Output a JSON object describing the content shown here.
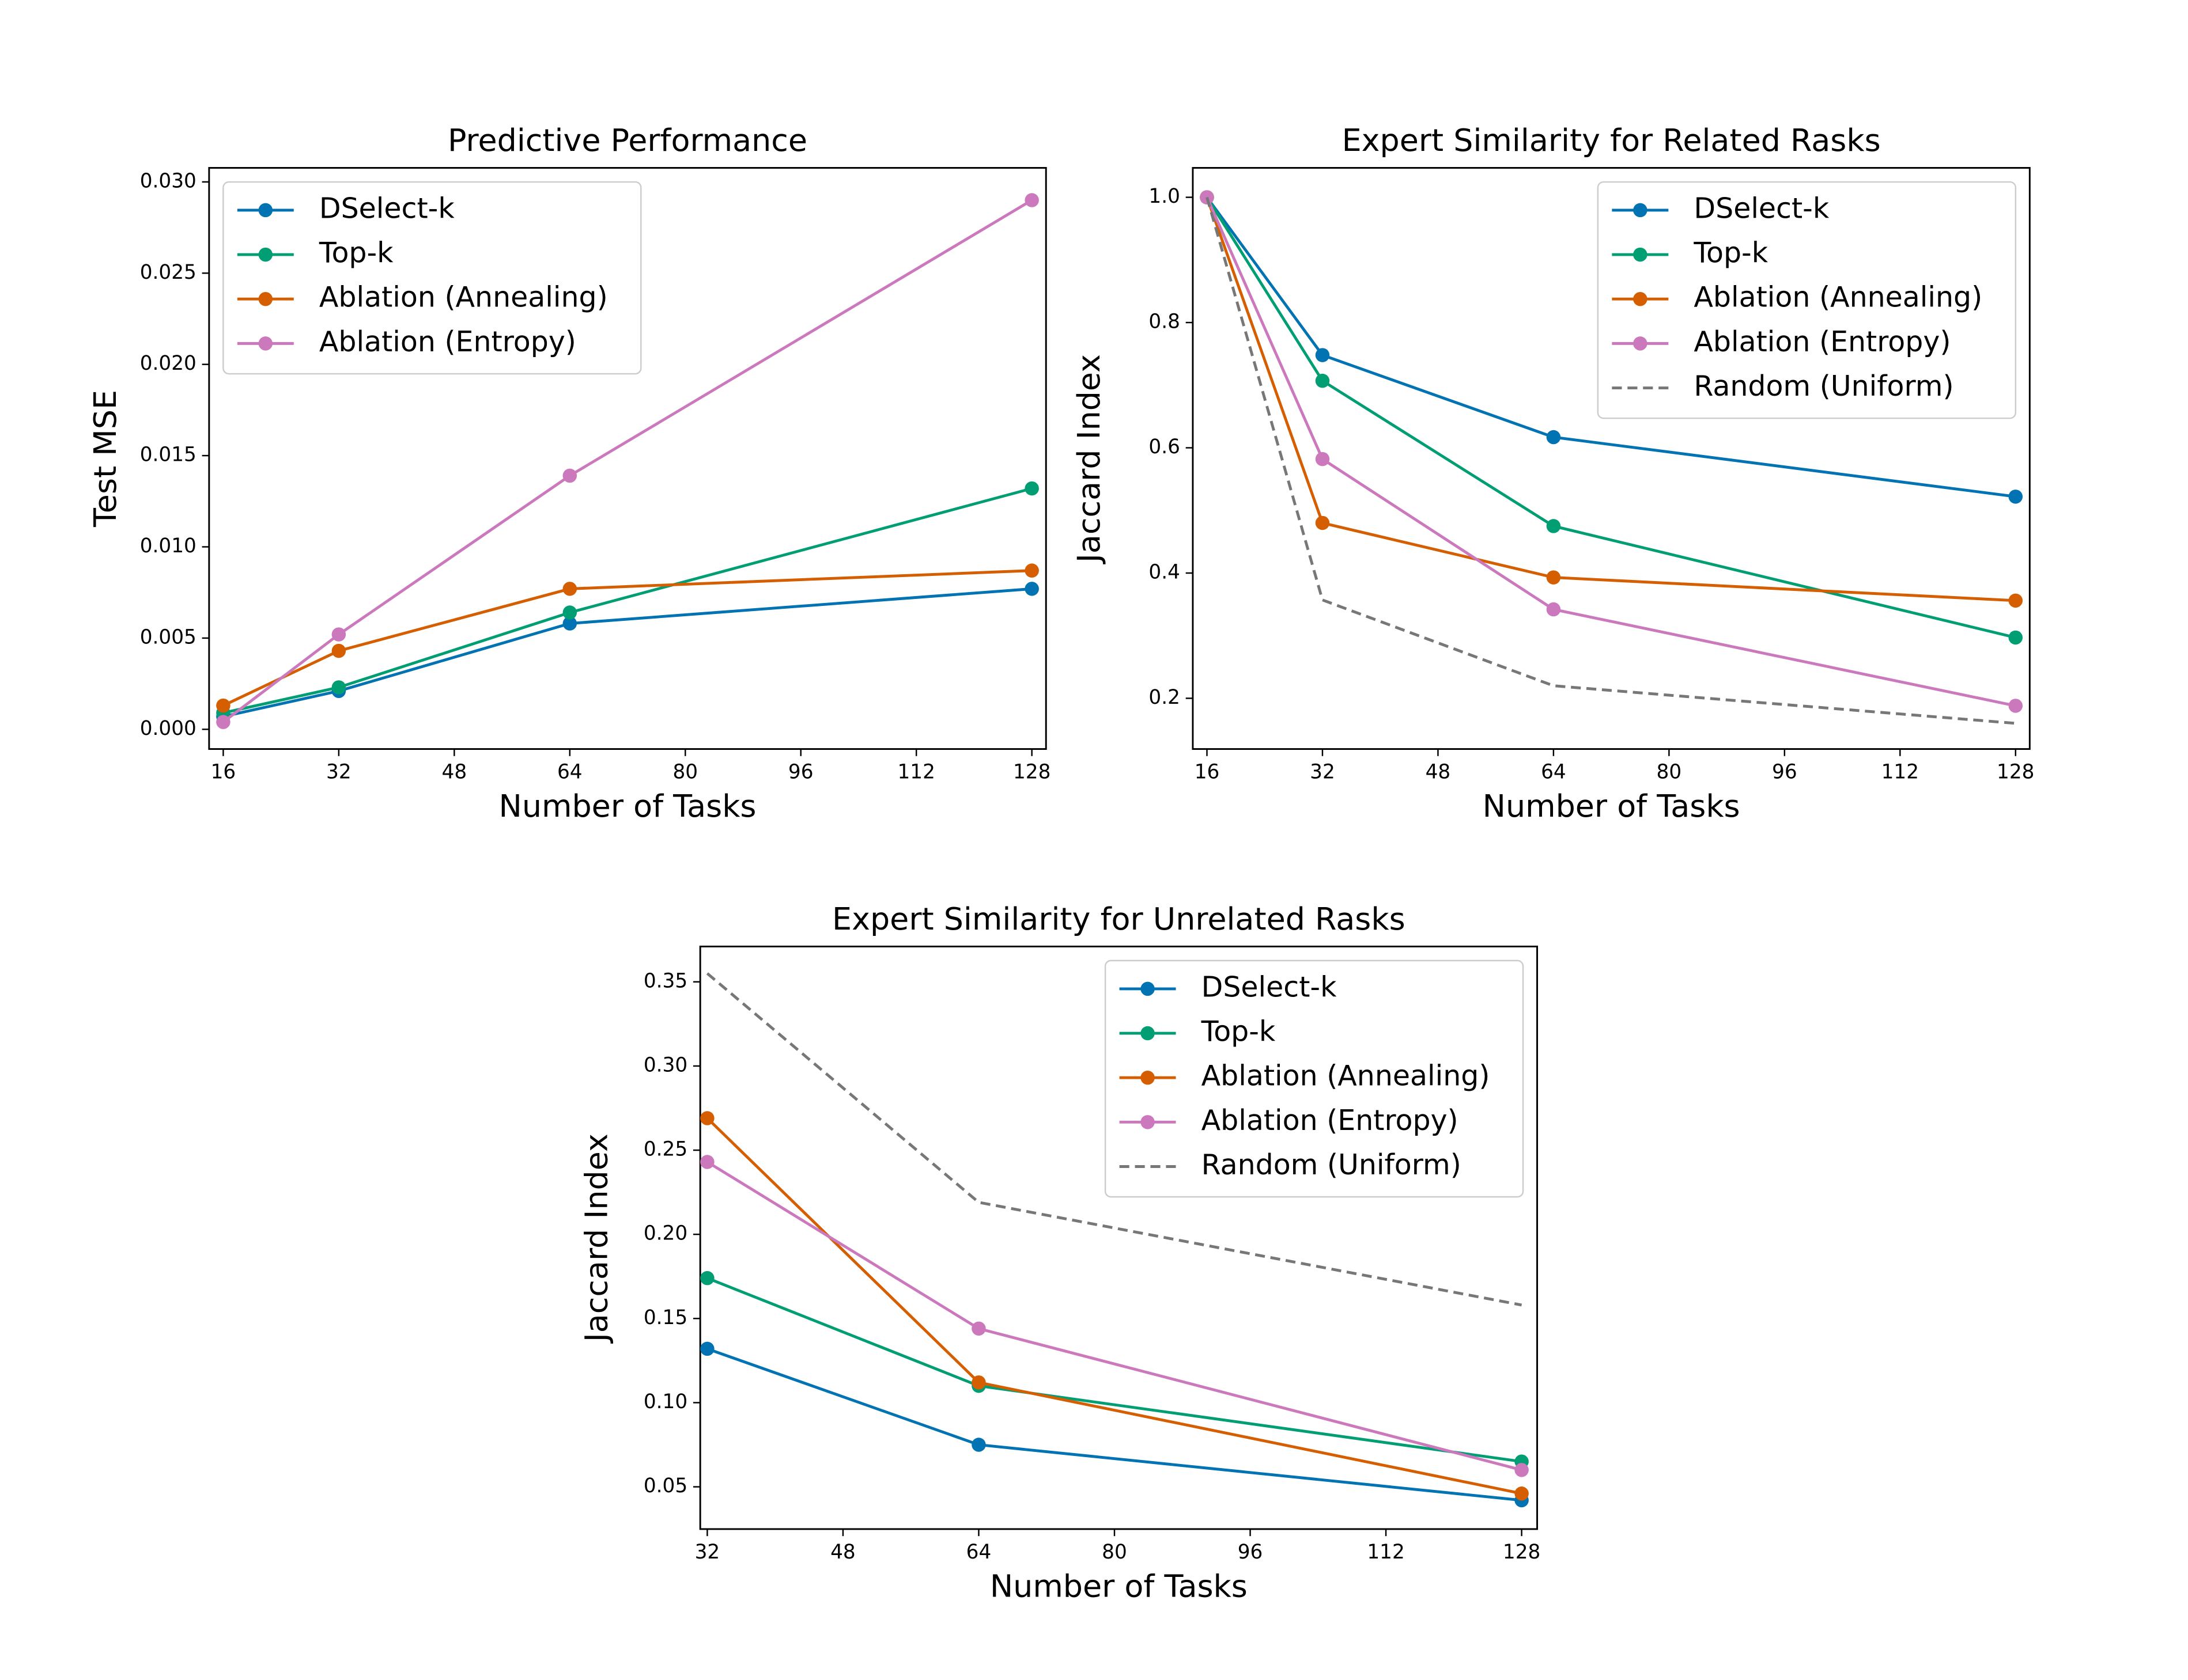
{
  "chart_data": [
    {
      "type": "line",
      "title": "Predictive Performance",
      "xlabel": "Number of Tasks",
      "ylabel": "Test MSE",
      "x": [
        16,
        32,
        64,
        128
      ],
      "xlim": [
        14.04,
        129.96
      ],
      "xticks": [
        16,
        32,
        48,
        64,
        80,
        96,
        112,
        128
      ],
      "ylim": [
        -0.00108,
        0.03077
      ],
      "yticks": [
        {
          "value": 0,
          "label": "0.000"
        },
        {
          "value": 0.005,
          "label": "0.005"
        },
        {
          "value": 0.01,
          "label": "0.010"
        },
        {
          "value": 0.015,
          "label": "0.015"
        },
        {
          "value": 0.02,
          "label": "0.020"
        },
        {
          "value": 0.025,
          "label": "0.025"
        },
        {
          "value": 0.03,
          "label": "0.030"
        }
      ],
      "legend": "upper-left",
      "series": [
        {
          "name": "DSelect-k",
          "color": "#0173b2",
          "values": [
            0.0007,
            0.0021,
            0.0058,
            0.0077
          ]
        },
        {
          "name": "Top-k",
          "color": "#029e73",
          "values": [
            0.0009,
            0.0023,
            0.0064,
            0.0132
          ]
        },
        {
          "name": "Ablation (Annealing)",
          "color": "#d55e00",
          "values": [
            0.0013,
            0.0043,
            0.0077,
            0.0087
          ]
        },
        {
          "name": "Ablation (Entropy)",
          "color": "#cc78bc",
          "values": [
            0.0004,
            0.0052,
            0.0139,
            0.029
          ]
        }
      ]
    },
    {
      "type": "line",
      "title": "Expert Similarity for Related Rasks",
      "xlabel": "Number of Tasks",
      "ylabel": "Jaccard Index",
      "x": [
        16,
        32,
        64,
        128
      ],
      "xlim": [
        14.04,
        129.96
      ],
      "xticks": [
        16,
        32,
        48,
        64,
        80,
        96,
        112,
        128
      ],
      "ylim": [
        0.119,
        1.047
      ],
      "yticks": [
        0.2,
        0.4,
        0.6,
        0.8,
        {
          "value": 1,
          "label": "1.0"
        }
      ],
      "legend": "upper-right",
      "series": [
        {
          "name": "DSelect-k",
          "color": "#0173b2",
          "values": [
            1.0,
            0.748,
            0.617,
            0.522
          ]
        },
        {
          "name": "Top-k",
          "color": "#029e73",
          "values": [
            1.0,
            0.707,
            0.475,
            0.297
          ]
        },
        {
          "name": "Ablation (Annealing)",
          "color": "#d55e00",
          "values": [
            1.0,
            0.48,
            0.393,
            0.356
          ]
        },
        {
          "name": "Ablation (Entropy)",
          "color": "#cc78bc",
          "values": [
            1.0,
            0.582,
            0.342,
            0.188
          ]
        },
        {
          "name": "Random (Uniform)",
          "color": "#777777",
          "linestyle": "dashed",
          "values": [
            1.0,
            0.357,
            0.22,
            0.16
          ]
        }
      ]
    },
    {
      "type": "line",
      "title": "Expert Similarity for Unrelated Rasks",
      "xlabel": "Number of Tasks",
      "ylabel": "Jaccard Index",
      "x": [
        32,
        64,
        128
      ],
      "xlim": [
        31.17,
        129.83
      ],
      "xticks": [
        32,
        48,
        64,
        80,
        96,
        112,
        128
      ],
      "ylim": [
        0.0249,
        0.371
      ],
      "yticks": [
        0.05,
        {
          "value": 0.1,
          "label": "0.10"
        },
        0.15,
        {
          "value": 0.2,
          "label": "0.20"
        },
        0.25,
        {
          "value": 0.3,
          "label": "0.30"
        },
        0.35
      ],
      "legend": "upper-right",
      "series": [
        {
          "name": "DSelect-k",
          "color": "#0173b2",
          "values": [
            0.132,
            0.075,
            0.042
          ]
        },
        {
          "name": "Top-k",
          "color": "#029e73",
          "values": [
            0.174,
            0.11,
            0.065
          ]
        },
        {
          "name": "Ablation (Annealing)",
          "color": "#d55e00",
          "values": [
            0.269,
            0.112,
            0.046
          ]
        },
        {
          "name": "Ablation (Entropy)",
          "color": "#cc78bc",
          "values": [
            0.243,
            0.144,
            0.06
          ]
        },
        {
          "name": "Random (Uniform)",
          "color": "#777777",
          "linestyle": "dashed",
          "values": [
            0.355,
            0.219,
            0.158
          ]
        }
      ]
    }
  ]
}
